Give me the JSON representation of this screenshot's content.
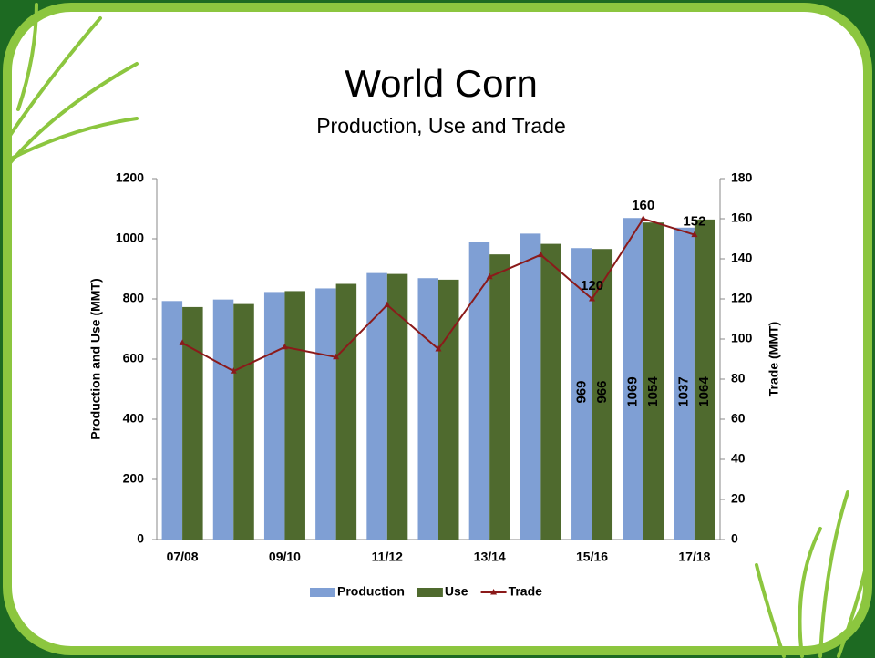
{
  "chart_data": {
    "type": "bar-line",
    "title": "World Corn",
    "subtitle": "Production, Use and Trade",
    "y_label": "Production and Use (MMT)",
    "y2_label": "Trade (MMT)",
    "categories": [
      "07/08",
      null,
      "09/10",
      null,
      "11/12",
      null,
      "13/14",
      null,
      "15/16",
      null,
      "17/18"
    ],
    "series": [
      {
        "name": "Production",
        "type": "bar",
        "color": "#7f9fd4",
        "values": [
          793,
          798,
          823,
          835,
          886,
          869,
          990,
          1017,
          969,
          1069,
          1037
        ],
        "value_labels": [
          null,
          null,
          null,
          null,
          null,
          null,
          null,
          null,
          "969",
          "1069",
          "1037"
        ]
      },
      {
        "name": "Use",
        "type": "bar",
        "color": "#4f6a2e",
        "values": [
          773,
          783,
          826,
          850,
          883,
          864,
          948,
          983,
          966,
          1054,
          1064
        ],
        "value_labels": [
          null,
          null,
          null,
          null,
          null,
          null,
          null,
          null,
          "966",
          "1054",
          "1064"
        ]
      },
      {
        "name": "Trade",
        "type": "line",
        "axis": "y2",
        "color": "#8b1a1a",
        "values": [
          98,
          84,
          96,
          91,
          117,
          95,
          131,
          142,
          120,
          160,
          152
        ],
        "value_labels": [
          null,
          null,
          null,
          null,
          null,
          null,
          null,
          null,
          "120",
          "160",
          "152"
        ]
      }
    ],
    "ylim": [
      0,
      1200
    ],
    "yticks": [
      0,
      200,
      400,
      600,
      800,
      1000,
      1200
    ],
    "y2lim": [
      0,
      180
    ],
    "y2ticks": [
      0,
      20,
      40,
      60,
      80,
      100,
      120,
      140,
      160,
      180
    ],
    "grid": false,
    "legend": "bottom"
  }
}
